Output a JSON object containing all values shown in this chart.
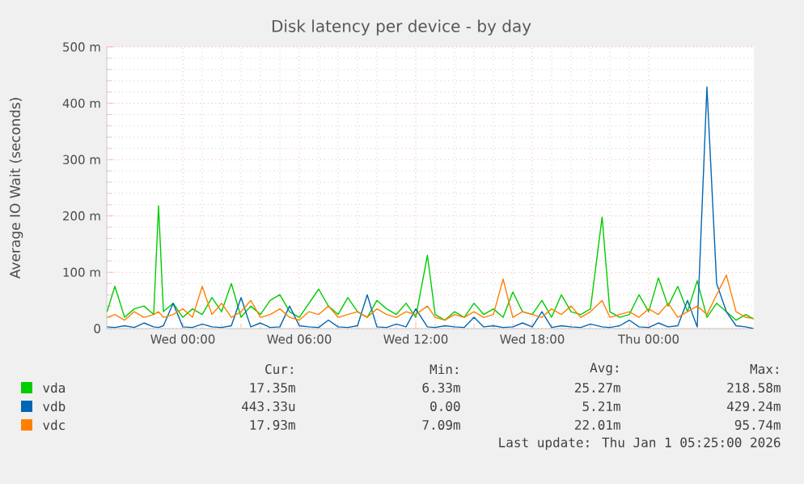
{
  "chart_data": {
    "type": "line",
    "title": "Disk latency per device - by day",
    "ylabel": "Average IO Wait (seconds)",
    "x": [
      "2025-12-30T20:06",
      "2025-12-30T20:30",
      "2025-12-30T21:00",
      "2025-12-30T21:30",
      "2025-12-30T22:00",
      "2025-12-30T22:30",
      "2025-12-30T22:45",
      "2025-12-30T23:00",
      "2025-12-30T23:30",
      "2025-12-31T00:00",
      "2025-12-31T00:30",
      "2025-12-31T01:00",
      "2025-12-31T01:30",
      "2025-12-31T02:00",
      "2025-12-31T02:30",
      "2025-12-31T03:00",
      "2025-12-31T03:30",
      "2025-12-31T04:00",
      "2025-12-31T04:30",
      "2025-12-31T05:00",
      "2025-12-31T05:30",
      "2025-12-31T06:00",
      "2025-12-31T06:30",
      "2025-12-31T07:00",
      "2025-12-31T07:30",
      "2025-12-31T08:00",
      "2025-12-31T08:30",
      "2025-12-31T09:00",
      "2025-12-31T09:30",
      "2025-12-31T10:00",
      "2025-12-31T10:30",
      "2025-12-31T11:00",
      "2025-12-31T11:30",
      "2025-12-31T12:00",
      "2025-12-31T12:36",
      "2025-12-31T13:00",
      "2025-12-31T13:30",
      "2025-12-31T14:00",
      "2025-12-31T14:30",
      "2025-12-31T15:00",
      "2025-12-31T15:30",
      "2025-12-31T16:00",
      "2025-12-31T16:30",
      "2025-12-31T17:00",
      "2025-12-31T17:30",
      "2025-12-31T18:00",
      "2025-12-31T18:30",
      "2025-12-31T19:00",
      "2025-12-31T19:30",
      "2025-12-31T20:00",
      "2025-12-31T20:30",
      "2025-12-31T21:00",
      "2025-12-31T21:36",
      "2025-12-31T22:00",
      "2025-12-31T22:30",
      "2025-12-31T23:00",
      "2025-12-31T23:30",
      "2026-01-01T00:00",
      "2026-01-01T00:30",
      "2026-01-01T01:00",
      "2026-01-01T01:30",
      "2026-01-01T02:00",
      "2026-01-01T02:30",
      "2026-01-01T03:00",
      "2026-01-01T03:30",
      "2026-01-01T04:00",
      "2026-01-01T04:30",
      "2026-01-01T05:00",
      "2026-01-01T05:24"
    ],
    "series": [
      {
        "name": "vda",
        "color": "#00cc00",
        "values": [
          30,
          75,
          20,
          35,
          40,
          25,
          218,
          30,
          45,
          20,
          35,
          25,
          55,
          30,
          80,
          20,
          40,
          25,
          50,
          60,
          30,
          20,
          45,
          70,
          40,
          25,
          55,
          30,
          20,
          50,
          35,
          25,
          45,
          20,
          130,
          25,
          15,
          30,
          20,
          45,
          25,
          35,
          20,
          65,
          30,
          25,
          50,
          20,
          60,
          30,
          25,
          35,
          198,
          30,
          20,
          25,
          60,
          30,
          90,
          40,
          75,
          30,
          85,
          20,
          45,
          30,
          15,
          25,
          17
        ]
      },
      {
        "name": "vdb",
        "color": "#0066b3",
        "values": [
          3,
          2,
          5,
          2,
          10,
          3,
          2,
          5,
          45,
          3,
          2,
          8,
          3,
          2,
          5,
          55,
          3,
          10,
          2,
          3,
          40,
          5,
          3,
          2,
          15,
          3,
          2,
          5,
          60,
          3,
          2,
          8,
          3,
          35,
          3,
          2,
          5,
          3,
          2,
          20,
          3,
          5,
          2,
          3,
          10,
          3,
          30,
          2,
          5,
          3,
          2,
          8,
          3,
          2,
          5,
          15,
          3,
          2,
          10,
          3,
          5,
          50,
          3,
          429,
          80,
          30,
          5,
          3,
          0
        ]
      },
      {
        "name": "vdc",
        "color": "#ff8000",
        "values": [
          20,
          25,
          15,
          30,
          20,
          25,
          30,
          20,
          25,
          35,
          20,
          75,
          25,
          45,
          20,
          30,
          50,
          20,
          25,
          35,
          20,
          15,
          30,
          25,
          40,
          20,
          25,
          30,
          20,
          35,
          25,
          20,
          30,
          25,
          40,
          20,
          15,
          25,
          20,
          30,
          20,
          25,
          88,
          20,
          30,
          25,
          20,
          35,
          25,
          40,
          20,
          30,
          50,
          20,
          25,
          30,
          20,
          35,
          25,
          45,
          20,
          30,
          40,
          25,
          60,
          95,
          30,
          20,
          18
        ]
      }
    ],
    "xlim": [
      "2025-12-30T20:05",
      "2026-01-01T05:25"
    ],
    "xticks": [
      {
        "value": "2025-12-31T00:00",
        "label": "Wed 00:00"
      },
      {
        "value": "2025-12-31T06:00",
        "label": "Wed 06:00"
      },
      {
        "value": "2025-12-31T12:00",
        "label": "Wed 12:00"
      },
      {
        "value": "2025-12-31T18:00",
        "label": "Wed 18:00"
      },
      {
        "value": "2026-01-01T00:00",
        "label": "Thu 00:00"
      }
    ],
    "ylim": [
      0,
      500
    ],
    "yticks": [
      0,
      {
        "value": 100,
        "label": "100 m"
      },
      {
        "value": 200,
        "label": "200 m"
      },
      {
        "value": 300,
        "label": "300 m"
      },
      {
        "value": 400,
        "label": "400 m"
      },
      {
        "value": 500,
        "label": "500 m"
      }
    ],
    "grid": true,
    "legend": "bottom",
    "line_style": "solid",
    "annotations": [
      "Cur:",
      "Min:",
      "Avg:",
      "Max:",
      "17.35m",
      "6.33m",
      "25.27m",
      "218.58m",
      "443.33u",
      "0.00",
      "5.21m",
      "429.24m",
      "17.93m",
      "7.09m",
      "22.01m",
      "95.74m",
      "Last update: Thu Jan  1 05:25:00 2026"
    ]
  }
}
